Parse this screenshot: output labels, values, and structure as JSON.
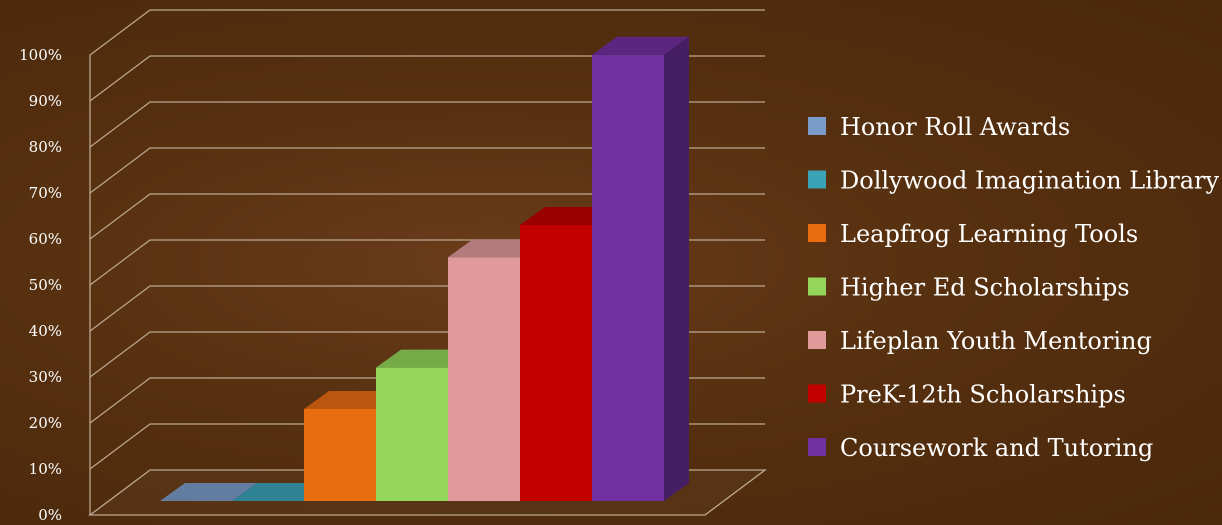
{
  "chart_data": {
    "type": "bar",
    "style": "3d-column",
    "categories": [
      "Honor Roll Awards",
      "Dollywood Imagination Library",
      "Leapfrog Learning Tools",
      "Higher Ed Scholarships",
      "Lifeplan Youth Mentoring",
      "PreK-12th Scholarships",
      "Coursework and Tutoring"
    ],
    "values": [
      0,
      0,
      20,
      29,
      53,
      60,
      97
    ],
    "colors": [
      "#7b9cc8",
      "#3aa3b8",
      "#e96c10",
      "#93d65a",
      "#e09a9a",
      "#c20000",
      "#7030a0"
    ],
    "ylim": [
      0,
      100
    ],
    "yticks": [
      "0%",
      "10%",
      "20%",
      "30%",
      "40%",
      "50%",
      "60%",
      "70%",
      "80%",
      "90%",
      "100%"
    ],
    "grid": true,
    "legend_position": "right"
  },
  "legend": {
    "items": [
      "Honor Roll Awards",
      "Dollywood Imagination Library",
      "Leapfrog Learning Tools",
      "Higher Ed Scholarships",
      "Lifeplan Youth Mentoring",
      "PreK-12th Scholarships",
      "Coursework and Tutoring"
    ]
  }
}
